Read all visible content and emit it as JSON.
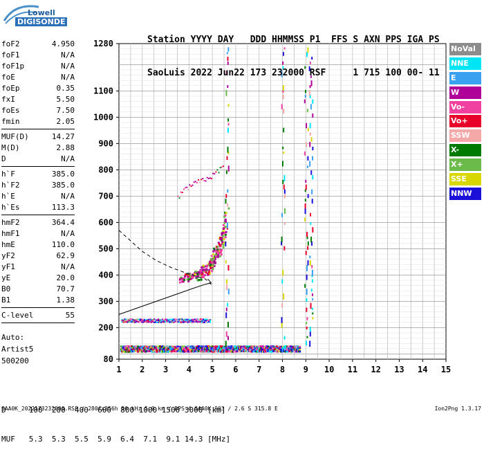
{
  "logo": {
    "line1": "Lowell",
    "line2": "DIGISONDE"
  },
  "header": {
    "labels": "Station YYYY DAY   DDD HHMMSS P1  FFS S AXN PPS IGA PS",
    "values": "SaoLuis 2022 Jun22 173 232000 RSF     1 715 100 00- 11"
  },
  "params": {
    "group1": [
      {
        "name": "foF2",
        "value": "4.950"
      },
      {
        "name": "foF1",
        "value": "N/A"
      },
      {
        "name": "foF1p",
        "value": "N/A"
      },
      {
        "name": "foE",
        "value": "N/A"
      },
      {
        "name": "foEp",
        "value": "0.35"
      },
      {
        "name": "fxI",
        "value": "5.50"
      },
      {
        "name": "foEs",
        "value": "7.50"
      },
      {
        "name": "fmin",
        "value": "2.05"
      }
    ],
    "group2": [
      {
        "name": "MUF(D)",
        "value": "14.27"
      },
      {
        "name": "M(D)",
        "value": "2.88"
      },
      {
        "name": "D",
        "value": "N/A"
      }
    ],
    "group3": [
      {
        "name": "h`F",
        "value": "385.0"
      },
      {
        "name": "h`F2",
        "value": "385.0"
      },
      {
        "name": "h`E",
        "value": "N/A"
      },
      {
        "name": "h`Es",
        "value": "113.3"
      }
    ],
    "group4": [
      {
        "name": "hmF2",
        "value": "364.4"
      },
      {
        "name": "hmF1",
        "value": "N/A"
      },
      {
        "name": "hmE",
        "value": "110.0"
      },
      {
        "name": "yF2",
        "value": "62.9"
      },
      {
        "name": "yF1",
        "value": "N/A"
      },
      {
        "name": "yE",
        "value": "20.0"
      },
      {
        "name": "B0",
        "value": "70.7"
      },
      {
        "name": "B1",
        "value": "1.38"
      }
    ],
    "group5": [
      {
        "name": "C-level",
        "value": "55"
      }
    ]
  },
  "auto": {
    "line1": "Auto:",
    "line2": "Artist5",
    "line3": "500200"
  },
  "dmuf": {
    "d_row": "D     100  200  400  600  800 1000 1500 3000 [km]",
    "muf_row": "MUF   5.3  5.3  5.5  5.9  6.4  7.1  9.1 14.3 [MHz]"
  },
  "footer": {
    "text": "SAA0K_2022173232000.RSF / 280fx256h 50 kHz 5.0 km / DPS-4 SAA0K 903 / 2.6 S 315.8 E",
    "version": "Ion2Png 1.3.17"
  },
  "legend": [
    {
      "label": "NoVal",
      "color": "#8c8c8c"
    },
    {
      "label": "NNE",
      "color": "#00e5f5"
    },
    {
      "label": "E",
      "color": "#3aa0f0"
    },
    {
      "label": "W",
      "color": "#b0009a"
    },
    {
      "label": "Vo-",
      "color": "#f040a0"
    },
    {
      "label": "Vo+",
      "color": "#e8002a"
    },
    {
      "label": "SSW",
      "color": "#f4a8a8"
    },
    {
      "label": "X-",
      "color": "#007a00"
    },
    {
      "label": "X+",
      "color": "#6abb4a"
    },
    {
      "label": "SSE",
      "color": "#d8d800"
    },
    {
      "label": "NNW",
      "color": "#1a10d8"
    }
  ],
  "chart_data": {
    "type": "scatter",
    "title": "",
    "xlabel": "",
    "ylabel": "",
    "xlim": [
      1,
      15
    ],
    "ylim": [
      80,
      1280
    ],
    "x_ticks": [
      1,
      2,
      3,
      4,
      5,
      6,
      7,
      8,
      9,
      10,
      11,
      12,
      13,
      14,
      15
    ],
    "y_ticks": [
      80,
      200,
      300,
      400,
      500,
      600,
      700,
      800,
      900,
      1000,
      1100,
      1280
    ],
    "grid": true,
    "legend_placement": "right",
    "traces": [
      {
        "name": "F-trace O",
        "x": [
          3.6,
          3.9,
          4.2,
          4.5,
          4.8,
          5.0,
          5.2,
          5.4,
          5.6
        ],
        "y": [
          385,
          395,
          405,
          420,
          440,
          470,
          510,
          560,
          650
        ]
      },
      {
        "name": "F-trace X",
        "x": [
          4.3,
          4.6,
          4.9,
          5.1,
          5.3,
          5.5
        ],
        "y": [
          395,
          410,
          430,
          460,
          500,
          560
        ]
      },
      {
        "name": "Es",
        "x": [
          1.05,
          2.0,
          3.0,
          4.0,
          5.0,
          6.0,
          7.0,
          8.0,
          8.7
        ],
        "y": [
          118,
          118,
          118,
          118,
          118,
          118,
          118,
          118,
          118
        ]
      },
      {
        "name": "Es multihop",
        "x": [
          1.1,
          2.0,
          3.0,
          4.0,
          4.9
        ],
        "y": [
          226,
          226,
          226,
          226,
          226
        ]
      },
      {
        "name": "F 2nd hop",
        "x": [
          3.5,
          4.0,
          4.5,
          5.0,
          5.5
        ],
        "y": [
          700,
          740,
          760,
          780,
          820
        ]
      }
    ],
    "profile_dashed": {
      "x": [
        1.0,
        1.5,
        2.0,
        2.6,
        3.2,
        3.8,
        4.3,
        4.7,
        4.95
      ],
      "y": [
        570,
        530,
        490,
        455,
        430,
        410,
        395,
        385,
        364
      ]
    },
    "profile_solid": {
      "x": [
        1.0,
        1.8,
        2.6,
        3.4,
        4.2,
        4.7,
        4.95,
        4.8
      ],
      "y": [
        250,
        275,
        300,
        325,
        350,
        365,
        370,
        385
      ]
    }
  }
}
